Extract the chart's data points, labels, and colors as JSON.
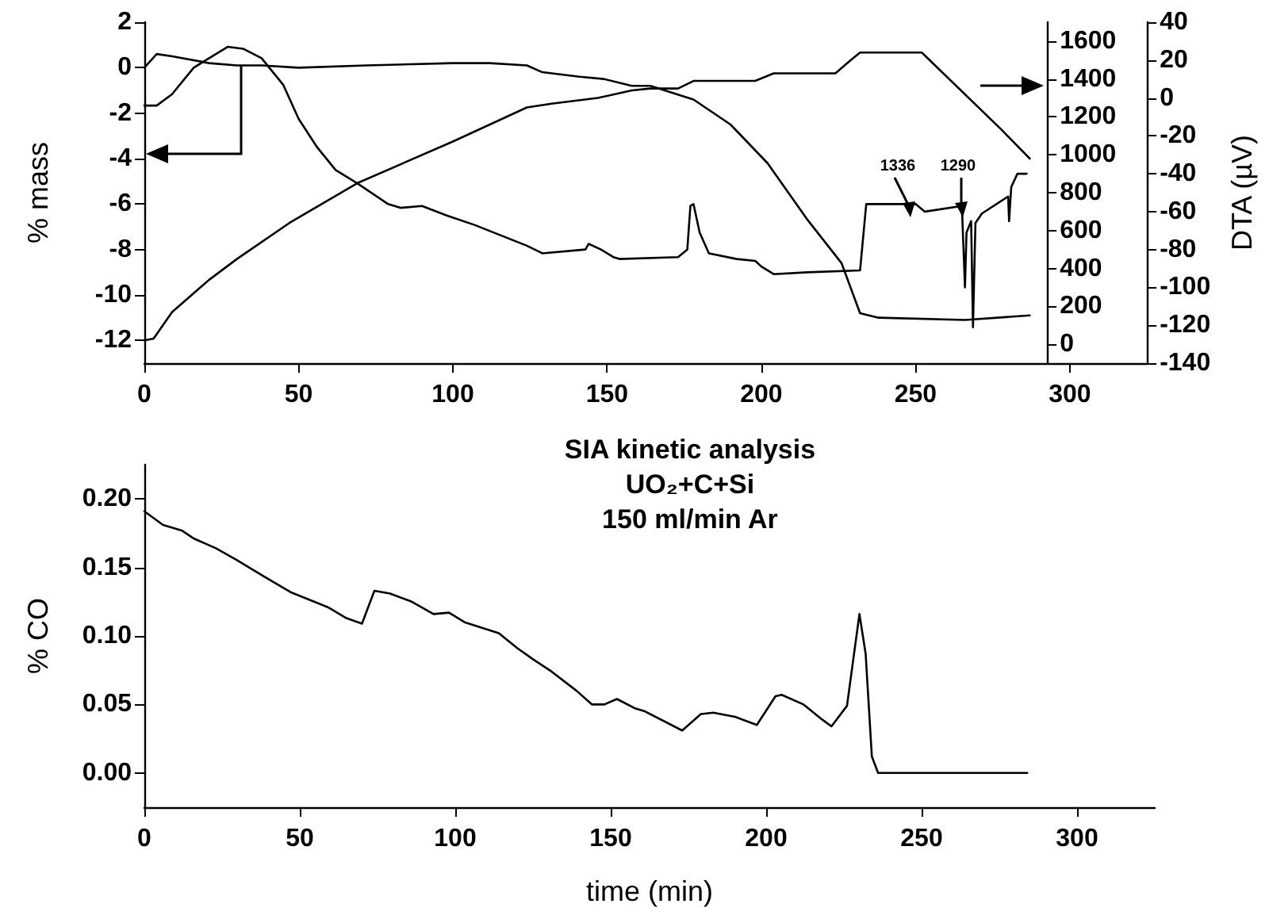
{
  "chart_data": [
    {
      "type": "line",
      "xlim": [
        0,
        325
      ],
      "xticks": [
        0,
        50,
        100,
        150,
        200,
        250,
        300
      ],
      "ylabel": "% mass",
      "ylim": [
        -13,
        2
      ],
      "yticks": [
        -12,
        -10,
        -8,
        -6,
        -4,
        -2,
        0,
        2
      ],
      "y2lim": [
        -100,
        1700
      ],
      "y2ticks": [
        0,
        200,
        400,
        600,
        800,
        1000,
        1200,
        1400,
        1600
      ],
      "y3label": "DTA (µV)",
      "y3lim": [
        -140,
        40
      ],
      "y3ticks": [
        -140,
        -120,
        -100,
        -80,
        -60,
        -40,
        -20,
        0,
        20,
        40
      ],
      "marker": "none",
      "line_style": "solid",
      "annotations": [
        "1336",
        "1290"
      ],
      "series": [
        {
          "color": "#000000",
          "x": [
            0,
            4,
            9,
            21,
            30,
            38,
            50,
            72,
            100,
            112,
            124,
            129,
            141,
            149,
            158,
            164,
            178,
            190,
            202,
            215,
            226,
            232,
            238,
            266,
            287
          ],
          "values": [
            0,
            0.6,
            0.5,
            0.2,
            0.1,
            0.1,
            0,
            0.1,
            0.2,
            0.2,
            0.1,
            -0.2,
            -0.4,
            -0.5,
            -0.8,
            -0.8,
            -1.4,
            -2.5,
            -4.2,
            -6.7,
            -8.6,
            -10.8,
            -11,
            -11.1,
            -10.9
          ]
        },
        {
          "color": "#000000",
          "axis": "y2",
          "x": [
            0,
            3,
            9,
            21,
            30,
            47,
            69,
            100,
            124,
            132,
            147,
            158,
            164,
            173,
            178,
            198,
            204,
            224,
            229,
            232,
            252,
            278,
            287
          ],
          "values": [
            20,
            30,
            170,
            340,
            450,
            640,
            850,
            1070,
            1250,
            1270,
            1300,
            1340,
            1350,
            1350,
            1390,
            1390,
            1430,
            1430,
            1500,
            1540,
            1540,
            1130,
            980
          ]
        },
        {
          "color": "#000000",
          "axis": "y3",
          "x": [
            0,
            4,
            9,
            16,
            25,
            27,
            32,
            38,
            45,
            50,
            56,
            62,
            69,
            79,
            83,
            90,
            98,
            107,
            124,
            129,
            143,
            144,
            148,
            152,
            154,
            173,
            176,
            177,
            178,
            180,
            183,
            192,
            198,
            200,
            204,
            215,
            232,
            234,
            250,
            253,
            265,
            266,
            266.5,
            268,
            268.6,
            269.4,
            271.5,
            280,
            280.3,
            281,
            283,
            286
          ],
          "values": [
            -4,
            -4,
            2,
            16,
            25,
            27,
            26,
            21,
            7,
            -11,
            -26,
            -38,
            -45,
            -56,
            -58,
            -57,
            -62,
            -67,
            -78,
            -82,
            -80,
            -77,
            -80,
            -84,
            -85,
            -84,
            -80,
            -57,
            -56,
            -71,
            -82,
            -85,
            -86,
            -89,
            -93,
            -92,
            -91,
            -56,
            -56,
            -60,
            -57,
            -100,
            -71,
            -65,
            -121,
            -66,
            -61,
            -52,
            -65,
            -47,
            -40,
            -40
          ]
        }
      ]
    },
    {
      "type": "line",
      "xlabel": "time (min)",
      "ylabel": "% CO",
      "xlim": [
        0,
        325
      ],
      "xticks": [
        0,
        50,
        100,
        150,
        200,
        250,
        300
      ],
      "ylim": [
        -0.025,
        0.225
      ],
      "yticks": [
        {
          "value": 0,
          "label": "0.00"
        },
        {
          "value": 0.05,
          "label": "0.05"
        },
        {
          "value": 0.1,
          "label": "0.10"
        },
        {
          "value": 0.15,
          "label": "0.15"
        },
        {
          "value": 0.2,
          "label": "0.20"
        }
      ],
      "marker": "none",
      "line_style": "solid",
      "annotations": [
        "SIA kinetic analysis",
        "UO₂+C+Si",
        "150 ml/min Ar"
      ],
      "series": [
        {
          "color": "#000000",
          "x": [
            0,
            6,
            12,
            16,
            23,
            30,
            38,
            47,
            59,
            65,
            70,
            74,
            79,
            86,
            93,
            98,
            103,
            114,
            120,
            125,
            131,
            139,
            144,
            148,
            152,
            158,
            161,
            173,
            179,
            183,
            190,
            197,
            203,
            205,
            212,
            218,
            221,
            226,
            230,
            232,
            234,
            236,
            284
          ],
          "values": [
            0.191,
            0.181,
            0.177,
            0.171,
            0.164,
            0.155,
            0.144,
            0.132,
            0.121,
            0.113,
            0.109,
            0.133,
            0.131,
            0.125,
            0.116,
            0.117,
            0.11,
            0.102,
            0.091,
            0.083,
            0.074,
            0.06,
            0.05,
            0.05,
            0.054,
            0.047,
            0.045,
            0.031,
            0.043,
            0.044,
            0.041,
            0.035,
            0.056,
            0.057,
            0.05,
            0.039,
            0.034,
            0.049,
            0.116,
            0.087,
            0.012,
            0,
            0
          ]
        }
      ]
    }
  ]
}
